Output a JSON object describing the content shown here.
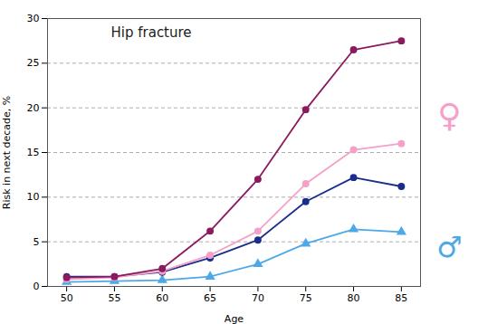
{
  "chart_data": {
    "type": "line",
    "title": "Hip fracture",
    "xlabel": "Age",
    "ylabel": "Risk in next decade, %",
    "x": [
      50,
      55,
      60,
      65,
      70,
      75,
      80,
      85
    ],
    "series": [
      {
        "color": "#8b1a5e",
        "marker": "circle",
        "values": [
          1.0,
          1.1,
          2.0,
          6.2,
          12.0,
          19.8,
          26.5,
          27.5
        ]
      },
      {
        "color": "#f4a0c8",
        "marker": "circle",
        "values": [
          0.8,
          1.0,
          1.7,
          3.5,
          6.2,
          11.5,
          15.3,
          16.0
        ]
      },
      {
        "color": "#1a2e8c",
        "marker": "circle",
        "values": [
          1.1,
          1.1,
          1.6,
          3.2,
          5.2,
          9.5,
          12.2,
          11.2
        ]
      },
      {
        "color": "#4da8e8",
        "marker": "triangle",
        "values": [
          0.5,
          0.6,
          0.7,
          1.1,
          2.5,
          4.8,
          6.4,
          6.1
        ]
      }
    ],
    "xlim": [
      48,
      87
    ],
    "xticks": [
      50,
      55,
      60,
      65,
      70,
      75,
      80,
      85
    ],
    "ylim": [
      0,
      30
    ],
    "yticks": [
      0,
      5,
      10,
      15,
      20,
      25,
      30
    ],
    "grid": true,
    "annotations": [
      {
        "text": "♀",
        "color": "#f4a0c8"
      },
      {
        "text": "♂",
        "color": "#4da8e8"
      }
    ]
  }
}
